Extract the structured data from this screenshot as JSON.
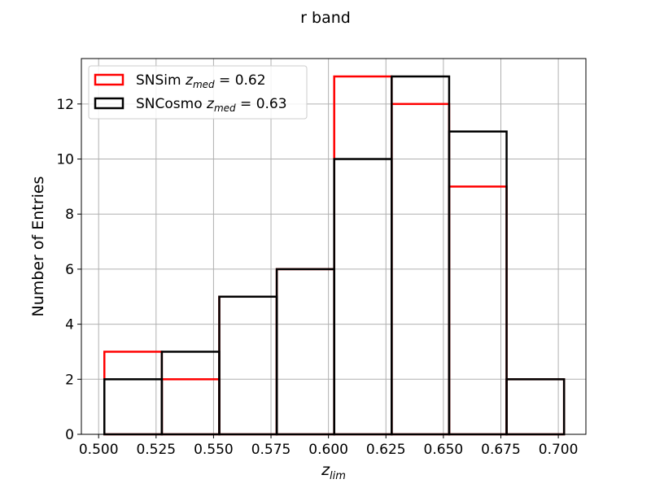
{
  "chart_data": {
    "type": "histogram",
    "title": "r band",
    "xlabel": {
      "base": "z",
      "sub": "lim"
    },
    "ylabel": "Number of Entries",
    "xlim": [
      0.4925,
      0.712
    ],
    "ylim": [
      0,
      13.65
    ],
    "grid": true,
    "legend_position": "upper-left",
    "bin_edges": [
      0.5025,
      0.5275,
      0.5525,
      0.5775,
      0.6025,
      0.6275,
      0.6525,
      0.6775,
      0.7025
    ],
    "x_ticks": [
      "0.500",
      "0.525",
      "0.550",
      "0.575",
      "0.600",
      "0.625",
      "0.650",
      "0.675",
      "0.700"
    ],
    "x_tick_values": [
      0.5,
      0.525,
      0.55,
      0.575,
      0.6,
      0.625,
      0.65,
      0.675,
      0.7
    ],
    "y_ticks": [
      "0",
      "2",
      "4",
      "6",
      "8",
      "10",
      "12"
    ],
    "y_tick_values": [
      0,
      2,
      4,
      6,
      8,
      10,
      12
    ],
    "series": [
      {
        "name": "SNSim",
        "stat_base": "z",
        "stat_sub": "med",
        "stat_value": " = 0.62",
        "color": "#ff0000",
        "values": [
          3,
          2,
          5,
          6,
          13,
          12,
          9,
          2
        ]
      },
      {
        "name": "SNCosmo",
        "stat_base": "z",
        "stat_sub": "med",
        "stat_value": " = 0.63",
        "color": "#000000",
        "values": [
          2,
          3,
          5,
          6,
          10,
          13,
          11,
          2
        ]
      }
    ]
  }
}
